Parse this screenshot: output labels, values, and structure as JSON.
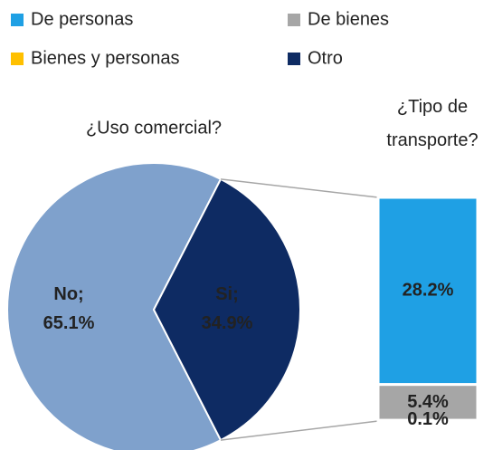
{
  "chart_data": [
    {
      "type": "pie",
      "title": "¿Uso comercial?",
      "categories": [
        "No",
        "Si"
      ],
      "values": [
        65.1,
        34.9
      ],
      "value_labels": [
        "No; 65.1%",
        "Si; 34.9%"
      ],
      "colors": [
        "#7fa1cc",
        "#0e2b63"
      ]
    },
    {
      "type": "stacked_bar",
      "title": "¿Tipo de transporte?",
      "series": [
        {
          "name": "De personas",
          "color": "#1fa0e4",
          "values": [
            28.2
          ],
          "value_labels": [
            "28.2%"
          ]
        },
        {
          "name": "De bienes",
          "color": "#a6a6a6",
          "values": [
            5.4
          ],
          "value_labels": [
            "5.4%"
          ]
        },
        {
          "name": "Bienes y personas",
          "color": "#ffc000",
          "values": [
            0
          ]
        },
        {
          "name": "Otro",
          "color": "#0e2b63",
          "values": [
            0.1
          ],
          "value_labels": [
            "0.1%"
          ]
        }
      ]
    }
  ]
}
